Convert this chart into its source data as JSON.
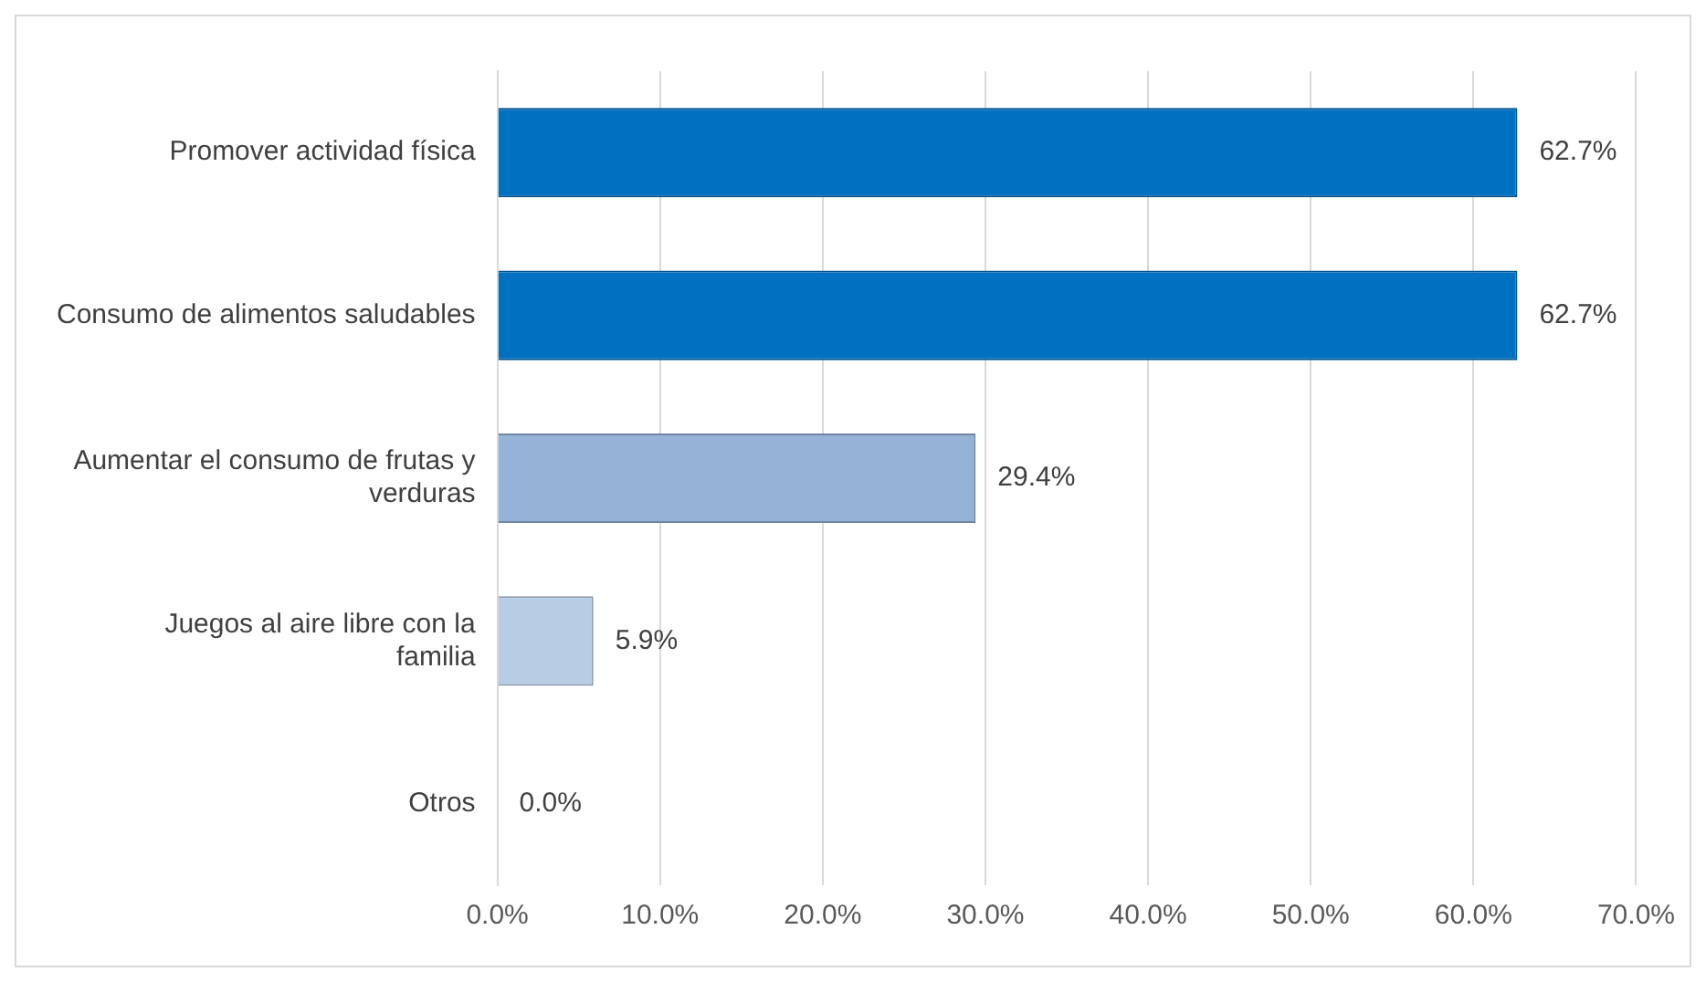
{
  "chart_data": {
    "type": "bar",
    "orientation": "horizontal",
    "categories": [
      "Promover actividad física",
      "Consumo de alimentos saludables",
      "Aumentar el consumo de frutas y verduras",
      "Juegos al aire libre con la familia",
      "Otros"
    ],
    "values": [
      62.7,
      62.7,
      29.4,
      5.9,
      0.0
    ],
    "colors": [
      "#0070c0",
      "#0070c0",
      "#95b3d7",
      "#b8cce4",
      "#b8cce4"
    ],
    "value_labels": [
      "62.7%",
      "62.7%",
      "29.4%",
      "5.9%",
      "0.0%"
    ],
    "xlim": [
      0,
      70
    ],
    "xticks": [
      {
        "value": 0,
        "label": "0.0%"
      },
      {
        "value": 10,
        "label": "10.0%"
      },
      {
        "value": 20,
        "label": "20.0%"
      },
      {
        "value": 30,
        "label": "30.0%"
      },
      {
        "value": 40,
        "label": "40.0%"
      },
      {
        "value": 50,
        "label": "50.0%"
      },
      {
        "value": 60,
        "label": "60.0%"
      },
      {
        "value": 70,
        "label": "70.0%"
      }
    ],
    "grid": "x",
    "legend": false
  }
}
